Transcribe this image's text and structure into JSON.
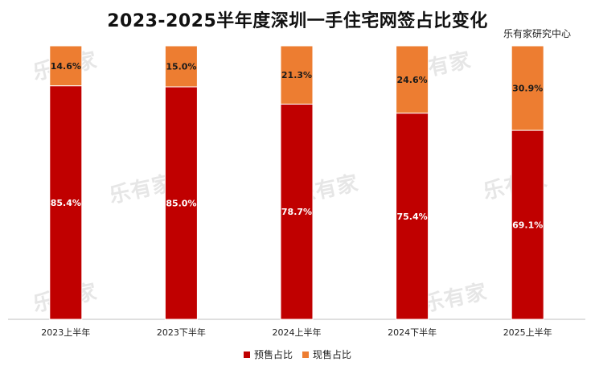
{
  "title": "2023-2025半年度深圳一手住宅网签占比变化",
  "source": "乐有家研究中心",
  "watermark": "乐有家",
  "colors": {
    "presale": "#C00000",
    "spot": "#ED7D31"
  },
  "chart_data": {
    "type": "bar",
    "stacked": true,
    "percent": true,
    "categories": [
      "2023上半年",
      "2023下半年",
      "2024上半年",
      "2024下半年",
      "2025上半年"
    ],
    "series": [
      {
        "name": "预售占比",
        "values": [
          85.4,
          85.0,
          78.7,
          75.4,
          69.1
        ],
        "labels": [
          "85.4%",
          "85.0%",
          "78.7%",
          "75.4%",
          "69.1%"
        ]
      },
      {
        "name": "现售占比",
        "values": [
          14.6,
          15.0,
          21.3,
          24.6,
          30.9
        ],
        "labels": [
          "14.6%",
          "15.0%",
          "21.3%",
          "24.6%",
          "30.9%"
        ]
      }
    ],
    "ylim": [
      0,
      100
    ],
    "legend": "bottom",
    "grid": false
  }
}
